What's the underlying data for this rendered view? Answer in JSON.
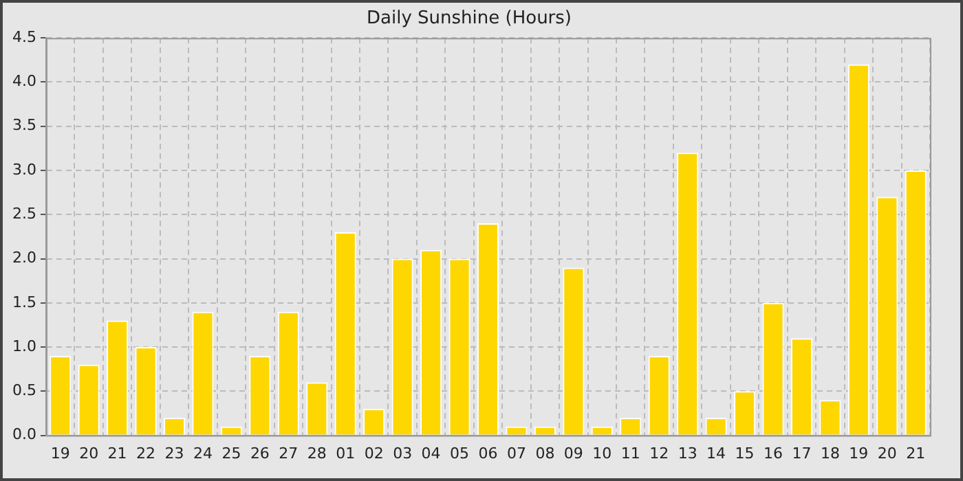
{
  "chart_data": {
    "type": "bar",
    "title": "Daily Sunshine (Hours)",
    "categories": [
      "19",
      "20",
      "21",
      "22",
      "23",
      "24",
      "25",
      "26",
      "27",
      "28",
      "01",
      "02",
      "03",
      "04",
      "05",
      "06",
      "07",
      "08",
      "09",
      "10",
      "11",
      "12",
      "13",
      "14",
      "15",
      "16",
      "17",
      "18",
      "19",
      "20",
      "21"
    ],
    "values": [
      0.9,
      0.8,
      1.3,
      1.0,
      0.2,
      1.4,
      0.1,
      0.9,
      1.4,
      0.6,
      2.3,
      0.3,
      2.0,
      2.1,
      2.0,
      2.4,
      0.1,
      0.1,
      1.9,
      0.1,
      0.2,
      0.9,
      3.2,
      0.2,
      0.5,
      1.5,
      1.1,
      0.4,
      4.2,
      2.7,
      3.0
    ],
    "color": "#ffd700",
    "ylim": [
      0,
      4.5
    ],
    "yticks": [
      {
        "value": 0,
        "label": "0.0"
      },
      0.5,
      {
        "value": 1,
        "label": "1.0"
      },
      1.5,
      {
        "value": 2,
        "label": "2.0"
      },
      2.5,
      {
        "value": 3,
        "label": "3.0"
      },
      3.5,
      {
        "value": 4,
        "label": "4.0"
      },
      4.5
    ],
    "grid": true
  }
}
